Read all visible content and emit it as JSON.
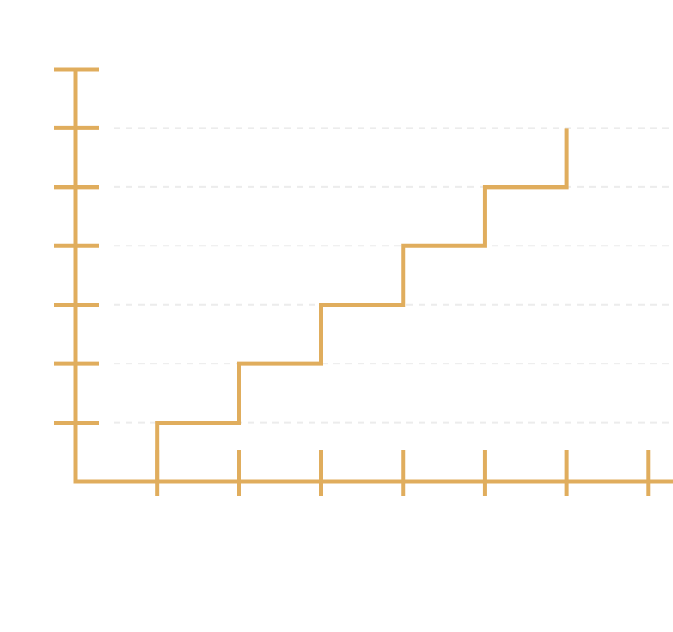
{
  "colors": {
    "accent": "#e0ad5d",
    "grid": "#ececec",
    "faint_text": "#fafafa"
  },
  "chart_data": {
    "type": "line",
    "line_shape": "step",
    "title": "",
    "xlabel": "",
    "ylabel": "",
    "x": [
      1,
      2,
      3,
      4,
      5,
      6
    ],
    "y": [
      1,
      2,
      3,
      4,
      5,
      6
    ],
    "xlim": [
      0,
      7.3
    ],
    "ylim": [
      0,
      7
    ],
    "x_ticks": [
      1,
      2,
      3,
      4,
      5,
      6,
      7
    ],
    "y_ticks": [
      1,
      2,
      3,
      4,
      5,
      6,
      7
    ],
    "grid": "y-dashed",
    "legend": "none"
  }
}
